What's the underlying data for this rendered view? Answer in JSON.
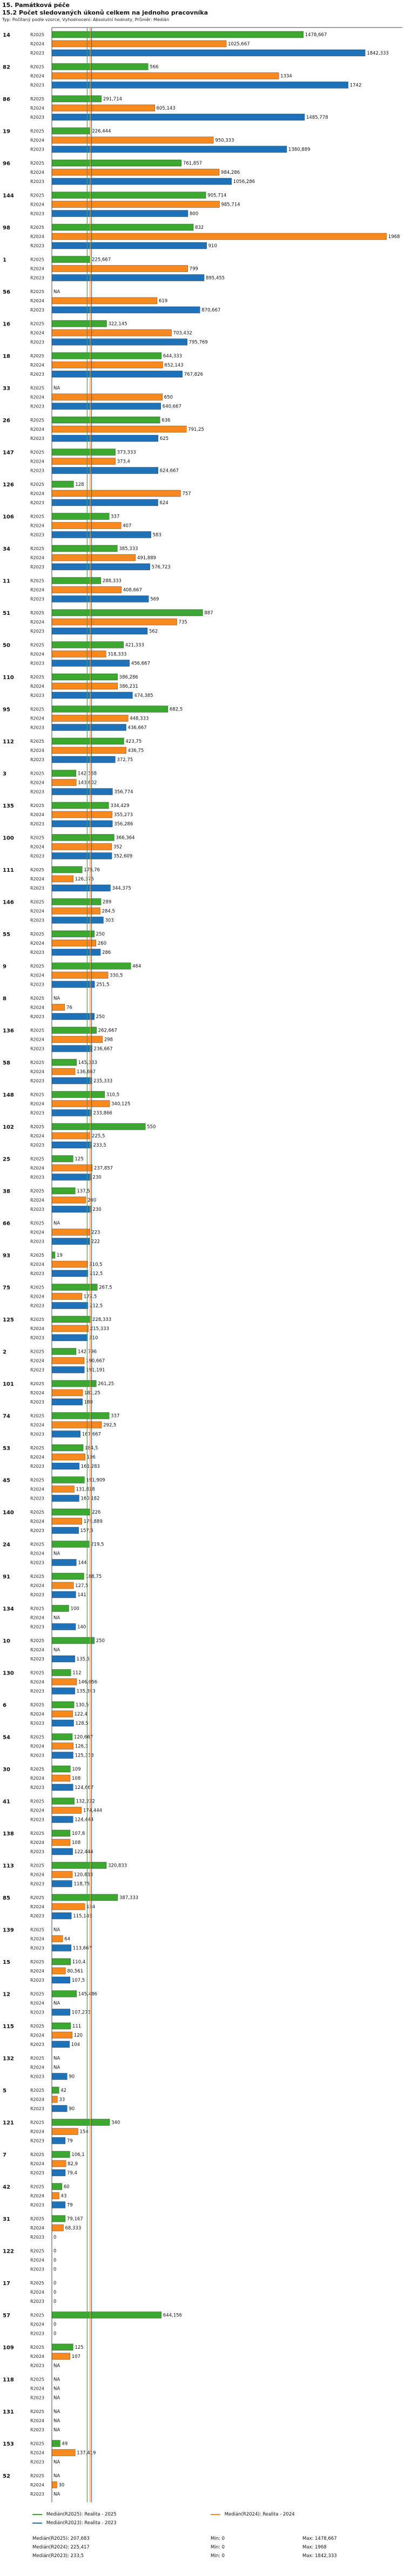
{
  "header": {
    "section_title": "15. Památková péče"
  },
  "chart_data": {
    "type": "bar",
    "title": "15.2 Počet sledovaných úkonů celkem na jednoho pracovníka",
    "subtitle": "Typ: Počítaný podle vzorce, Vyhodnocení: Absolutní hodnoty, Průměr: Medián",
    "na_label": "NA",
    "xlim": [
      0,
      2000
    ],
    "categories": [
      "14",
      "82",
      "86",
      "19",
      "96",
      "144",
      "98",
      "1",
      "56",
      "16",
      "18",
      "33",
      "26",
      "147",
      "126",
      "106",
      "34",
      "11",
      "51",
      "50",
      "110",
      "95",
      "112",
      "3",
      "135",
      "100",
      "111",
      "146",
      "55",
      "9",
      "8",
      "136",
      "58",
      "148",
      "102",
      "25",
      "38",
      "66",
      "93",
      "75",
      "125",
      "2",
      "101",
      "74",
      "53",
      "45",
      "140",
      "24",
      "91",
      "134",
      "10",
      "130",
      "6",
      "54",
      "30",
      "41",
      "138",
      "113",
      "85",
      "139",
      "15",
      "12",
      "115",
      "132",
      "5",
      "121",
      "7",
      "42",
      "31",
      "122",
      "17",
      "57",
      "109",
      "118",
      "131",
      "153",
      "52"
    ],
    "series": [
      {
        "name": "R2025",
        "color": "#3ca832",
        "median": 207.683,
        "values": [
          1478.667,
          566,
          291.714,
          226.444,
          761.857,
          905.714,
          832,
          225.667,
          null,
          322.145,
          644.333,
          null,
          636,
          373.333,
          128,
          337,
          385.333,
          288.333,
          887,
          421.333,
          386.286,
          682.5,
          423.75,
          142.368,
          334.429,
          366.364,
          178.76,
          289,
          250,
          464,
          null,
          262.667,
          145.333,
          310.5,
          550,
          125,
          137.5,
          null,
          19,
          267.5,
          228.333,
          142.796,
          261.25,
          337,
          184.5,
          191.909,
          226,
          219.5,
          188.75,
          100,
          250,
          112,
          130.5,
          120.667,
          109,
          132.222,
          107.8,
          320.833,
          387.333,
          null,
          110.4,
          145.486,
          111,
          null,
          42,
          340,
          106.1,
          60,
          79.167,
          0,
          0,
          644.156,
          125,
          null,
          null,
          49,
          null
        ]
      },
      {
        "name": "R2024",
        "color": "#f7891f",
        "median": 225.417,
        "values": [
          1025.667,
          1334,
          605.143,
          950.333,
          984.286,
          985.714,
          1968,
          799,
          619,
          703.432,
          652.143,
          650,
          791.25,
          373.4,
          757,
          407,
          491.889,
          408.667,
          735,
          318.333,
          386.231,
          448.333,
          436.75,
          143.602,
          355.273,
          352,
          126.375,
          284.5,
          260,
          330.5,
          76,
          298,
          136.667,
          340.125,
          225.5,
          237.857,
          200,
          223,
          210.5,
          177.5,
          215.333,
          190.667,
          181.25,
          292.5,
          196,
          131.818,
          176.889,
          null,
          127.5,
          null,
          null,
          146.056,
          122.4,
          126.3,
          108,
          174.444,
          108,
          120.833,
          194,
          64,
          80.561,
          null,
          120,
          null,
          33,
          154,
          82.9,
          43,
          68.333,
          0,
          0,
          0,
          107,
          null,
          null,
          137.419,
          30
        ]
      },
      {
        "name": "R2023",
        "color": "#1f72b8",
        "median": 233.5,
        "values": [
          1842.333,
          1742,
          1485.778,
          1380.889,
          1056.286,
          800,
          910,
          895.455,
          870.667,
          795.769,
          767.826,
          640.667,
          625,
          624.667,
          624,
          583,
          576.723,
          569,
          562,
          456.667,
          474.385,
          436.667,
          372.75,
          356.774,
          356.286,
          352.609,
          344.375,
          303,
          286,
          251.5,
          250,
          236.667,
          235.333,
          233.866,
          233.5,
          230,
          230,
          222,
          212.5,
          212.5,
          210,
          191.191,
          180,
          167.667,
          161.283,
          160.182,
          157.5,
          144,
          141,
          140,
          135.5,
          135.343,
          128.5,
          125.333,
          124.667,
          124.444,
          122.444,
          118.75,
          115.143,
          113.667,
          107.5,
          107.273,
          104,
          90,
          90,
          79,
          79.4,
          79,
          0,
          0,
          0,
          0,
          null,
          null,
          null,
          null,
          null
        ]
      }
    ]
  },
  "footer": {
    "legend": [
      {
        "label": "Medián(R2025): Realita - 2025"
      },
      {
        "label": "Medián(R2024): Realita - 2024"
      },
      {
        "label": "Medián(R2023): Realita - 2023"
      }
    ],
    "stats": [
      {
        "median": "Medián(R2025): 207,683",
        "min": "Min: 0",
        "max": "Max: 1478,667"
      },
      {
        "median": "Medián(R2024): 225,417",
        "min": "Min: 0",
        "max": "Max: 1968"
      },
      {
        "median": "Medián(R2023): 233,5",
        "min": "Min: 0",
        "max": "Max: 1842,333"
      }
    ]
  }
}
